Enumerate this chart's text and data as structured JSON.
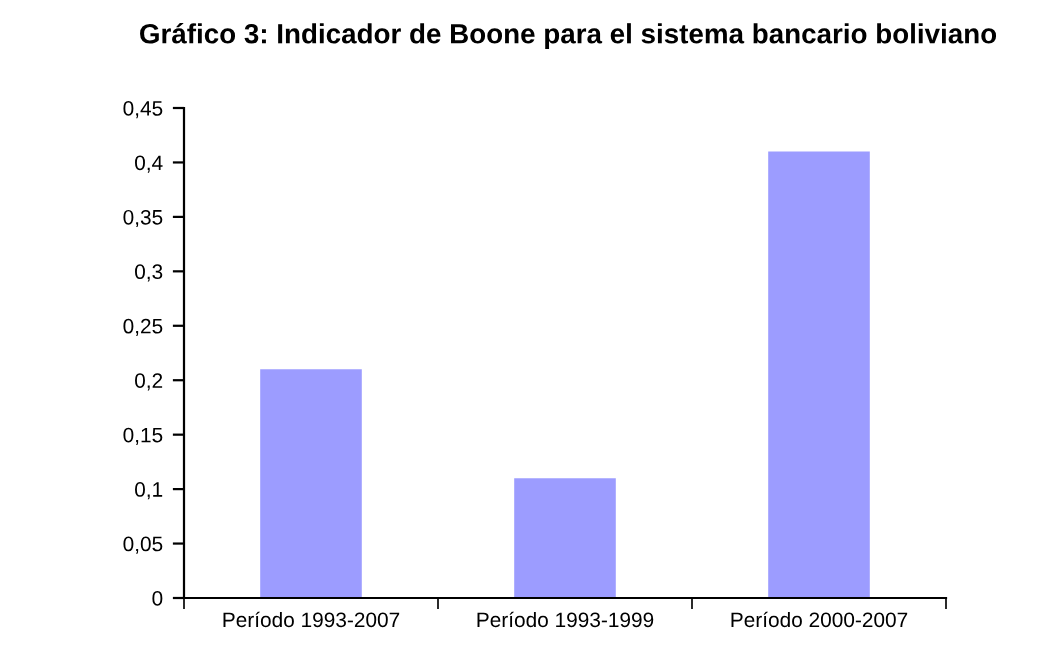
{
  "chart_data": {
    "type": "bar",
    "title": "Gráfico 3: Indicador de Boone para el sistema bancario boliviano",
    "categories": [
      "Período 1993-2007",
      "Período 1993-1999",
      "Período 2000-2007"
    ],
    "values": [
      0.21,
      0.11,
      0.41
    ],
    "color": "#9c9cff",
    "ylim": [
      0,
      0.45
    ],
    "yticks": [
      0,
      {
        "value": 0.05,
        "label": "0,05"
      },
      {
        "value": 0.1,
        "label": "0,1"
      },
      {
        "value": 0.15,
        "label": "0,15"
      },
      {
        "value": 0.2,
        "label": "0,2"
      },
      {
        "value": 0.25,
        "label": "0,25"
      },
      {
        "value": 0.3,
        "label": "0,3"
      },
      {
        "value": 0.35,
        "label": "0,35"
      },
      {
        "value": 0.4,
        "label": "0,4"
      },
      {
        "value": 0.45,
        "label": "0,45"
      }
    ],
    "grid": false,
    "legend": false
  }
}
